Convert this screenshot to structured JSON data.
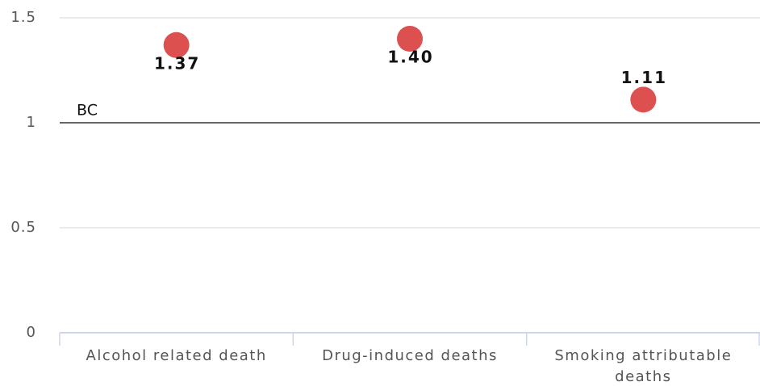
{
  "chart_data": {
    "type": "scatter",
    "categories": [
      "Alcohol related death",
      "Drug-induced deaths",
      "Smoking attributable deaths"
    ],
    "values": [
      1.37,
      1.4,
      1.11
    ],
    "value_labels": [
      "1.37",
      "1.40",
      "1.11"
    ],
    "color": "#dd5050",
    "ylim": [
      0,
      1.5
    ],
    "yticks": [
      0,
      0.5,
      1,
      1.5
    ],
    "grid": true,
    "reference_line": {
      "value": 1,
      "label": "BC"
    }
  }
}
